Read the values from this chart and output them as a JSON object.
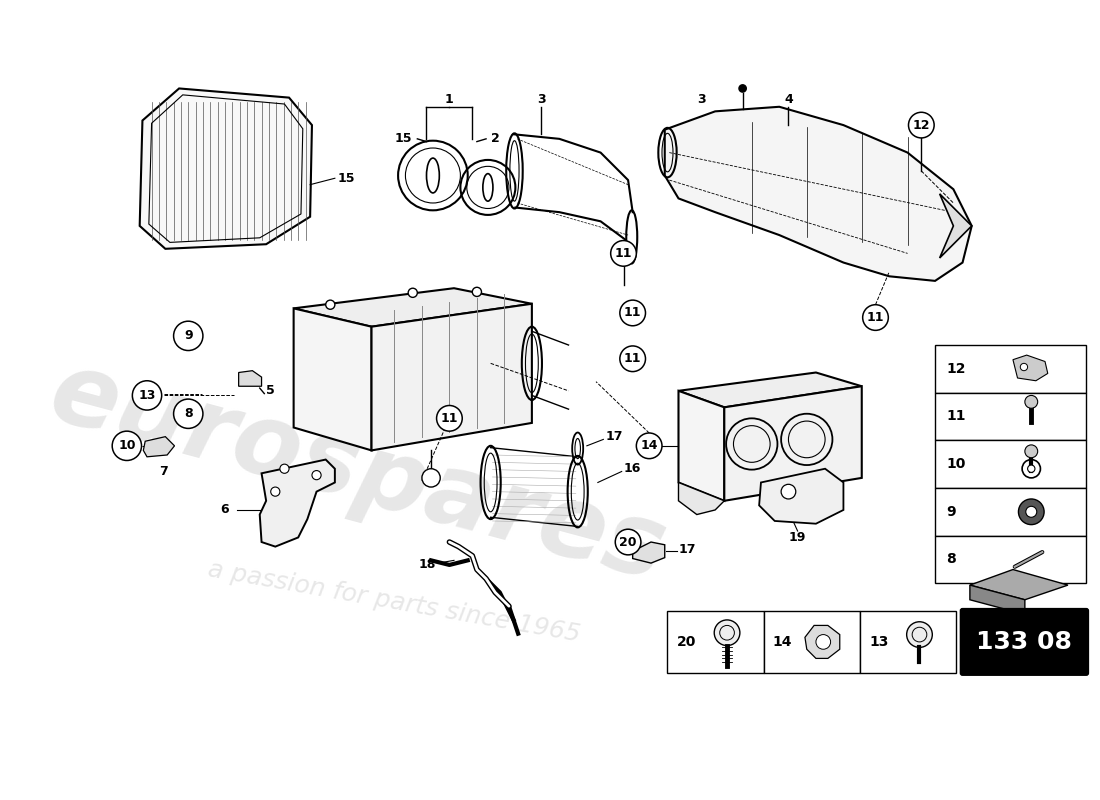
{
  "background_color": "#ffffff",
  "part_number": "133 08",
  "watermark_text1": "eurospares",
  "watermark_text2": "a passion for parts since 1965",
  "legend_items": [
    {
      "id": "12",
      "row": 0
    },
    {
      "id": "11",
      "row": 1
    },
    {
      "id": "10",
      "row": 2
    },
    {
      "id": "9",
      "row": 3
    },
    {
      "id": "8",
      "row": 4
    }
  ],
  "bottom_items": [
    {
      "id": "20",
      "col": 0
    },
    {
      "id": "14",
      "col": 1
    },
    {
      "id": "13",
      "col": 2
    }
  ]
}
